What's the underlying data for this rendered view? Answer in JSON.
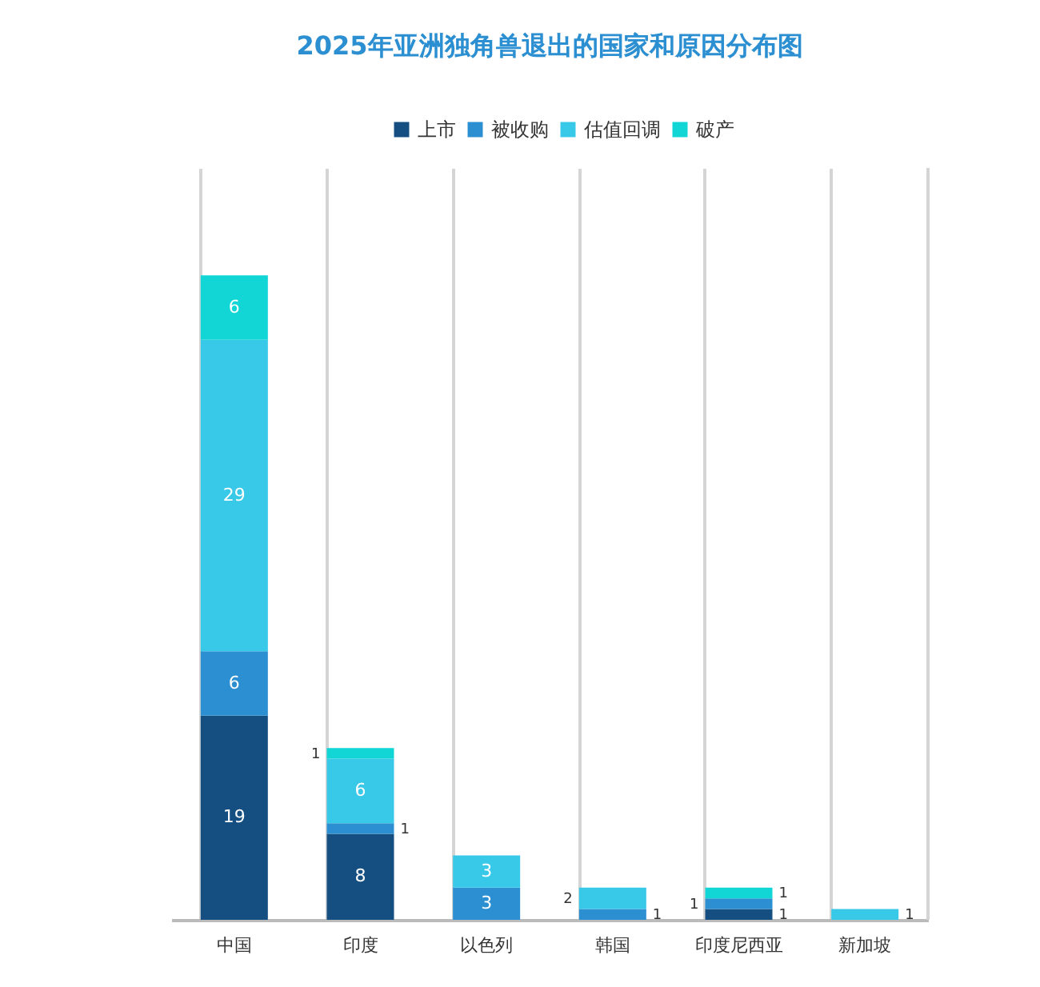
{
  "chart_data": {
    "type": "bar",
    "title": "2025年亚洲独角兽退出的国家和原因分布图",
    "categories": [
      "中国",
      "印度",
      "以色列",
      "韩国",
      "印度尼西亚",
      "新加坡"
    ],
    "stacked": true,
    "data_labels": true,
    "ylim": [
      0,
      70
    ],
    "tick_labels": "x",
    "grid": "x",
    "legend": "top",
    "series": [
      {
        "name": "上市",
        "color": "#154f82",
        "values": [
          19,
          8,
          null,
          null,
          1,
          null
        ]
      },
      {
        "name": "被收购",
        "color": "#2b8fd1",
        "values": [
          6,
          1,
          3,
          1,
          1,
          null
        ]
      },
      {
        "name": "估值回调",
        "color": "#38c8e8",
        "values": [
          29,
          6,
          3,
          2,
          null,
          1
        ]
      },
      {
        "name": "破产",
        "color": "#12d6d6",
        "values": [
          6,
          1,
          null,
          null,
          1,
          null
        ]
      }
    ]
  }
}
